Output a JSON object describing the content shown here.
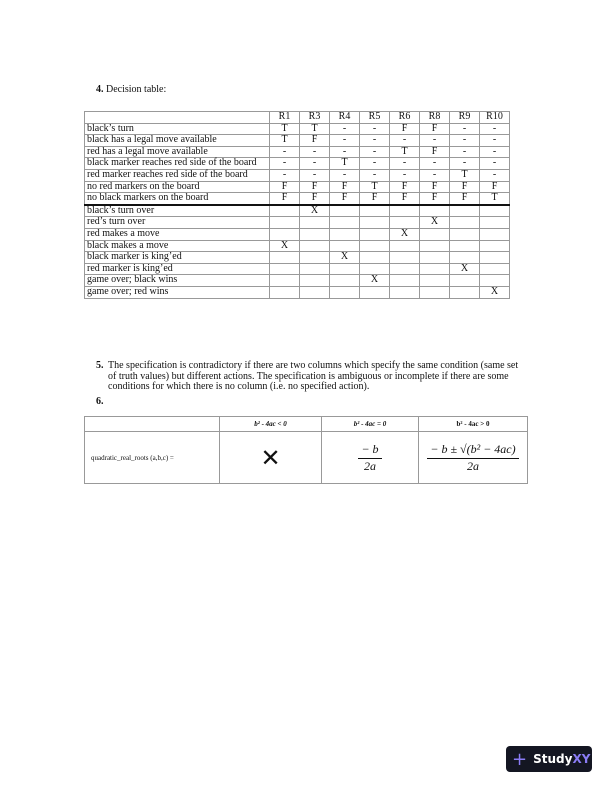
{
  "q4": {
    "number": "4.",
    "title": "Decision table:"
  },
  "decision_table": {
    "columns": [
      "R1",
      "R3",
      "R4",
      "R5",
      "R6",
      "R8",
      "R9",
      "R10"
    ],
    "conditions": [
      {
        "label": "black’s turn",
        "values": [
          "T",
          "T",
          "-",
          "-",
          "F",
          "F",
          "-",
          "-"
        ]
      },
      {
        "label": "black has a legal move available",
        "values": [
          "T",
          "F",
          "-",
          "-",
          "-",
          "-",
          "-",
          "-"
        ]
      },
      {
        "label": "red has a legal move available",
        "values": [
          "-",
          "-",
          "-",
          "-",
          "T",
          "F",
          "-",
          "-"
        ]
      },
      {
        "label": "black marker reaches red side of the board",
        "values": [
          "-",
          "-",
          "T",
          "-",
          "-",
          "-",
          "-",
          "-"
        ]
      },
      {
        "label": "red marker reaches red side of the board",
        "values": [
          "-",
          "-",
          "-",
          "-",
          "-",
          "-",
          "T",
          "-"
        ]
      },
      {
        "label": "no red markers on the board",
        "values": [
          "F",
          "F",
          "F",
          "T",
          "F",
          "F",
          "F",
          "F"
        ]
      },
      {
        "label": "no black markers on the board",
        "values": [
          "F",
          "F",
          "F",
          "F",
          "F",
          "F",
          "F",
          "T"
        ]
      }
    ],
    "actions": [
      {
        "label": "black’s turn over",
        "values": [
          "",
          "X",
          "",
          "",
          "",
          "",
          "",
          ""
        ]
      },
      {
        "label": "red’s turn over",
        "values": [
          "",
          "",
          "",
          "",
          "",
          "X",
          "",
          ""
        ]
      },
      {
        "label": "red makes a move",
        "values": [
          "",
          "",
          "",
          "",
          "X",
          "",
          "",
          ""
        ]
      },
      {
        "label": "black makes a move",
        "values": [
          "X",
          "",
          "",
          "",
          "",
          "",
          "",
          ""
        ]
      },
      {
        "label": "black marker is king’ed",
        "values": [
          "",
          "",
          "X",
          "",
          "",
          "",
          "",
          ""
        ]
      },
      {
        "label": "red marker is king’ed",
        "values": [
          "",
          "",
          "",
          "",
          "",
          "",
          "X",
          ""
        ]
      },
      {
        "label": "game over; black wins",
        "values": [
          "",
          "",
          "",
          "X",
          "",
          "",
          "",
          ""
        ]
      },
      {
        "label": "game over; red wins",
        "values": [
          "",
          "",
          "",
          "",
          "",
          "",
          "",
          "X"
        ]
      }
    ]
  },
  "q5": {
    "number": "5.",
    "text": "The specification is contradictory if there are two columns which specify the same condition (same set of truth values) but different actions. The specification is ambiguous or incomplete if there are some conditions for which there is no column (i.e. no specified action)."
  },
  "q6": {
    "number": "6."
  },
  "quad_table": {
    "headers": [
      "b² - 4ac < 0",
      "b² - 4ac = 0",
      "b² - 4ac > 0"
    ],
    "row_label": "quadratic_real_roots (a,b,c)  =",
    "cell_lt": "✕",
    "cell_eq": {
      "num": "− b",
      "den": "2a"
    },
    "cell_gt": {
      "num": "− b ± √(b² − 4ac)",
      "den": "2a"
    }
  },
  "brand": {
    "text_a": "Study",
    "text_b": "XY",
    "accent": "#8b7cf6"
  }
}
